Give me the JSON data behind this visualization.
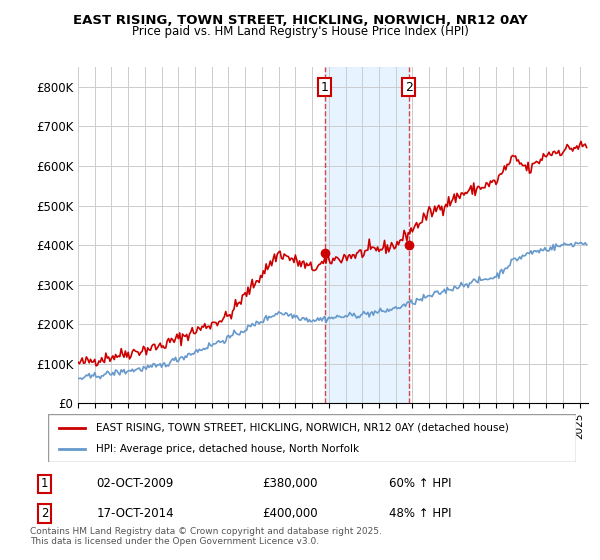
{
  "title1": "EAST RISING, TOWN STREET, HICKLING, NORWICH, NR12 0AY",
  "title2": "Price paid vs. HM Land Registry's House Price Index (HPI)",
  "ylabel": "£",
  "ylim": [
    0,
    850000
  ],
  "yticks": [
    0,
    100000,
    200000,
    300000,
    400000,
    500000,
    600000,
    700000,
    800000
  ],
  "ytick_labels": [
    "£0",
    "£100K",
    "£200K",
    "£300K",
    "£400K",
    "£500K",
    "£600K",
    "£700K",
    "£800K"
  ],
  "red_color": "#cc0000",
  "blue_color": "#6699cc",
  "shade_color": "#ddeeff",
  "marker1_x": 2009.75,
  "marker2_x": 2014.79,
  "marker1_y": 380000,
  "marker2_y": 400000,
  "vline1_x": 2009.75,
  "vline2_x": 2014.79,
  "legend_entry1": "EAST RISING, TOWN STREET, HICKLING, NORWICH, NR12 0AY (detached house)",
  "legend_entry2": "HPI: Average price, detached house, North Norfolk",
  "table_rows": [
    {
      "num": "1",
      "date": "02-OCT-2009",
      "price": "£380,000",
      "hpi": "60% ↑ HPI"
    },
    {
      "num": "2",
      "date": "17-OCT-2014",
      "price": "£400,000",
      "hpi": "48% ↑ HPI"
    }
  ],
  "footer": "Contains HM Land Registry data © Crown copyright and database right 2025.\nThis data is licensed under the Open Government Licence v3.0.",
  "xmin": 1995.0,
  "xmax": 2025.5
}
